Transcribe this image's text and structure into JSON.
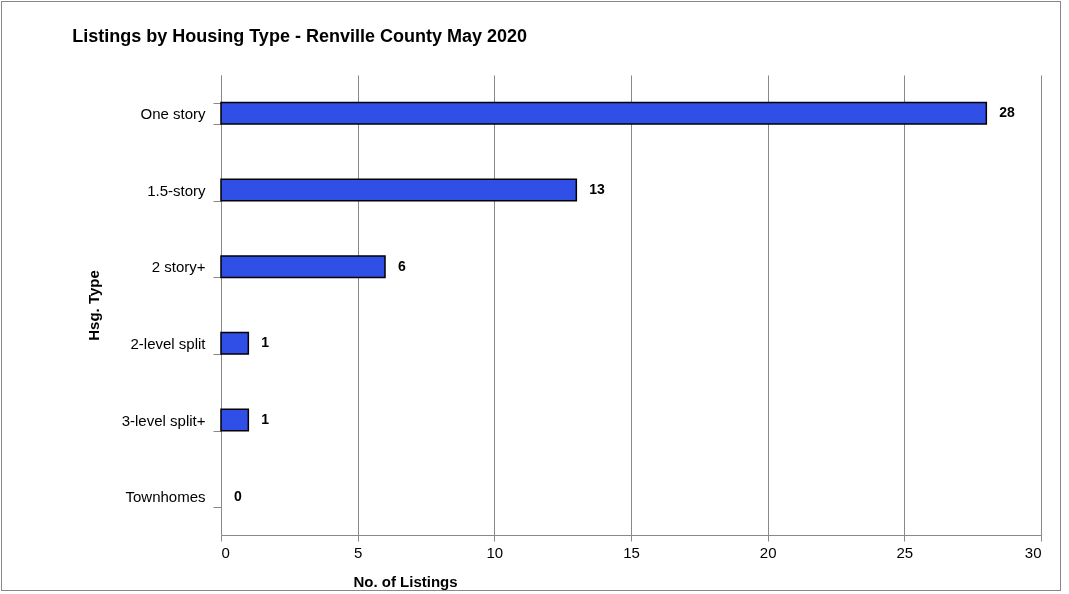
{
  "chart_data": {
    "type": "bar",
    "orientation": "horizontal",
    "title": "Listings by Housing Type - Renville County May 2020",
    "xlabel": "No. of Listings",
    "ylabel": "Hsg. Type",
    "categories": [
      "One story",
      "1.5-story",
      "2 story+",
      "2-level split",
      "3-level split+",
      "Townhomes"
    ],
    "values": [
      28,
      13,
      6,
      1,
      1,
      0
    ],
    "color": "#2f4fe6",
    "xlim": [
      0,
      30
    ],
    "xticks": [
      0,
      5,
      10,
      15,
      20,
      25,
      30
    ],
    "grid": "x",
    "data_labels": true
  }
}
